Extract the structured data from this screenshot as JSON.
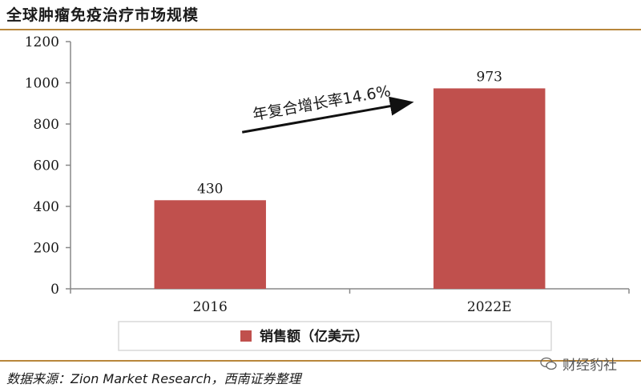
{
  "header": {
    "title": "全球肿瘤免疫治疗市场规模"
  },
  "chart_data": {
    "type": "bar",
    "categories": [
      "2016",
      "2022E"
    ],
    "series": [
      {
        "name": "销售额（亿美元）",
        "values": [
          430,
          973
        ]
      }
    ],
    "data_labels": [
      "430",
      "973"
    ],
    "ylim": [
      0,
      1200
    ],
    "yticks": [
      0,
      200,
      400,
      600,
      800,
      1000,
      1200
    ],
    "yticklabels": [
      "0",
      "200",
      "400",
      "600",
      "800",
      "1000",
      "1200"
    ],
    "annotation": "年复合增长率14.6%",
    "bar_color": "#c0504d",
    "legend_position": "bottom",
    "grid": false
  },
  "footer": {
    "source": "数据来源：Zion Market Research，西南证券整理",
    "watermark": "财经豹社"
  }
}
